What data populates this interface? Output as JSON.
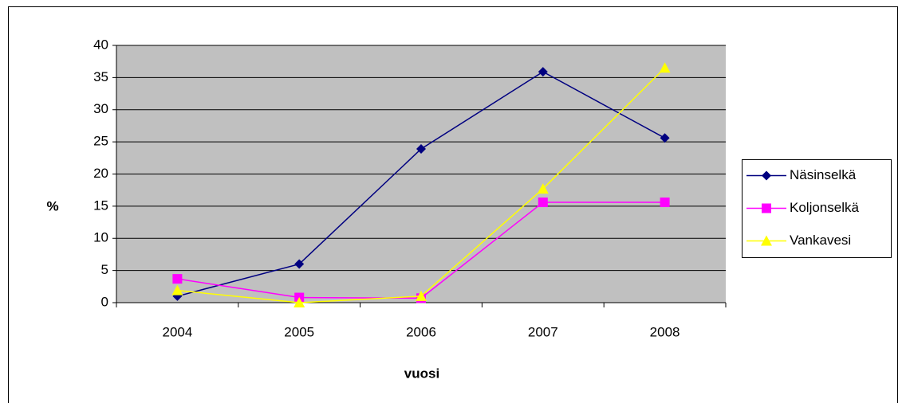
{
  "chart_data": {
    "type": "line",
    "x_label": "vuosi",
    "y_label": "%",
    "categories": [
      "2004",
      "2005",
      "2006",
      "2007",
      "2008"
    ],
    "series": [
      {
        "name": "Näsinselkä",
        "color": "#000080",
        "marker": "diamond",
        "values": [
          1.0,
          6.0,
          23.9,
          35.9,
          25.6
        ]
      },
      {
        "name": "Koljonselkä",
        "color": "#ff00ff",
        "marker": "square",
        "values": [
          3.7,
          0.8,
          0.7,
          15.6,
          15.6
        ]
      },
      {
        "name": "Vankavesi",
        "color": "#ffff00",
        "marker": "triangle",
        "values": [
          1.9,
          0.0,
          1.0,
          17.7,
          36.5
        ]
      }
    ],
    "ylim": [
      0,
      40
    ],
    "yticks": [
      0,
      5,
      10,
      15,
      20,
      25,
      30,
      35,
      40
    ],
    "grid": true,
    "legend_position": "right",
    "plot_background": "#c0c0c0"
  }
}
